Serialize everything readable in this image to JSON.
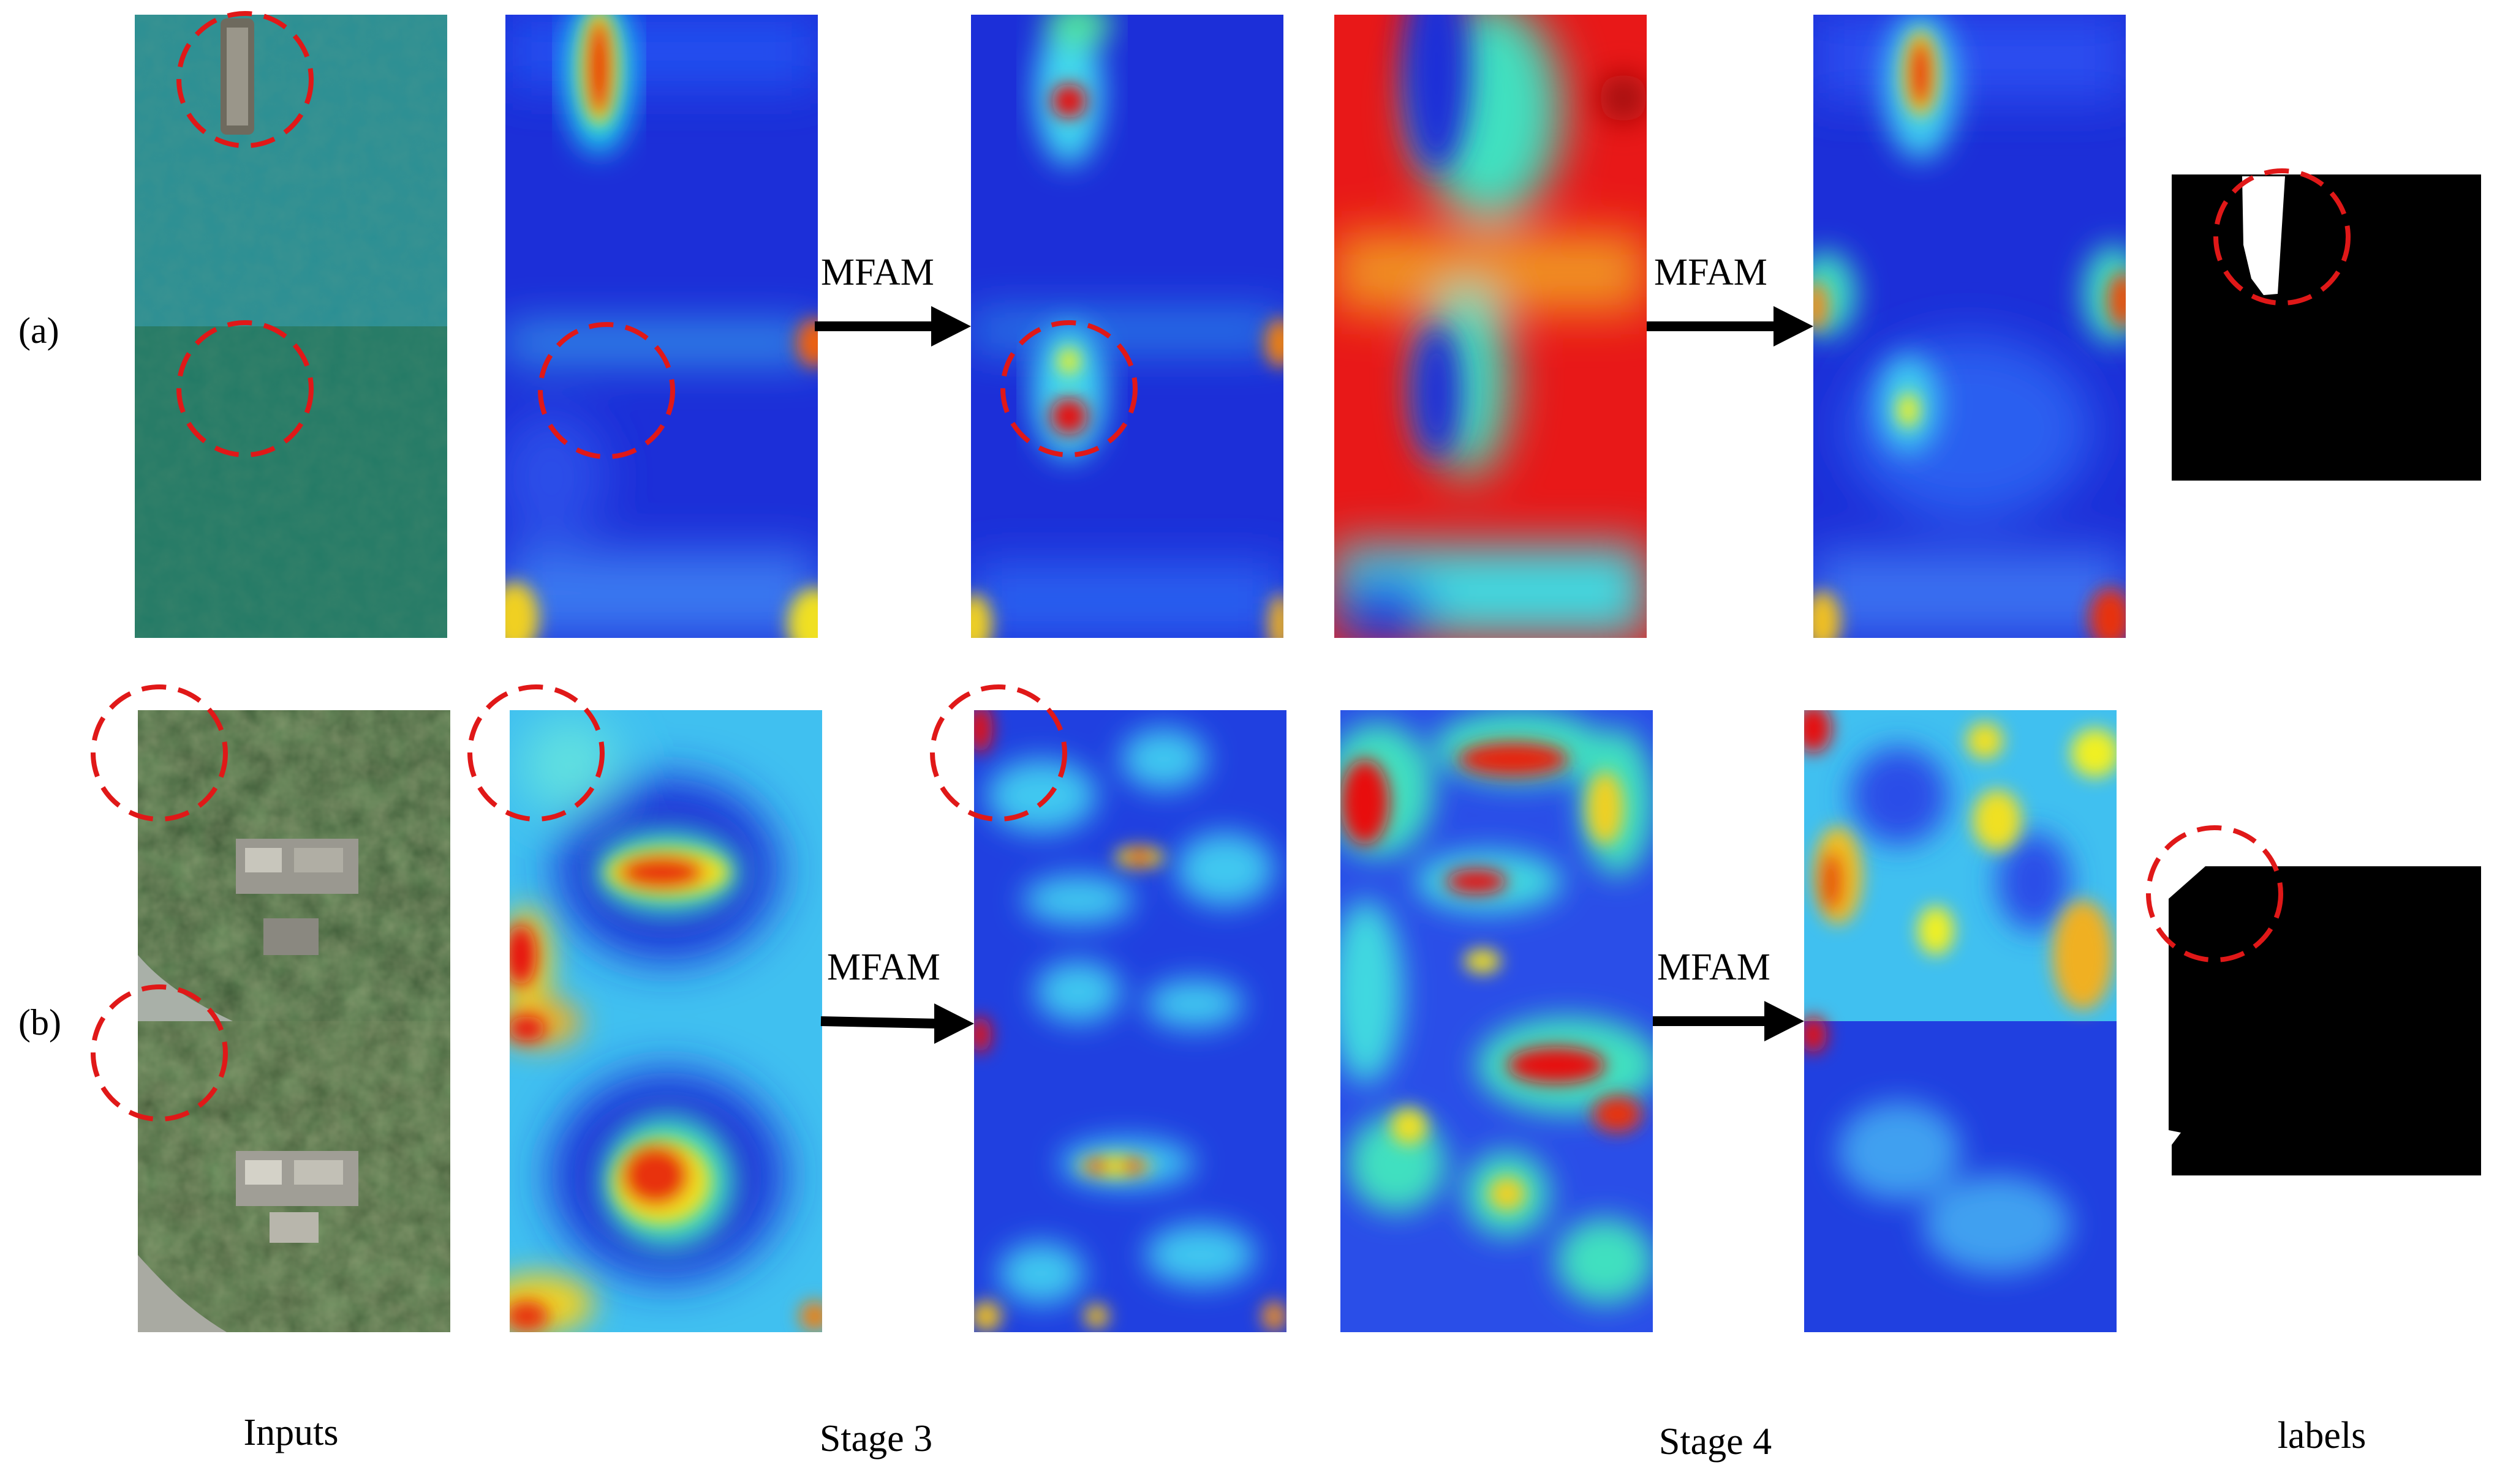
{
  "rows": [
    {
      "label": "(a)",
      "arrows": [
        "MFAM",
        "MFAM"
      ]
    },
    {
      "label": "(b)",
      "arrows": [
        "MFAM",
        "MFAM"
      ]
    }
  ],
  "columns": {
    "inputs": "Inputs",
    "stage3": "Stage 3",
    "stage4": "Stage 4",
    "labels": "labels"
  },
  "colors": {
    "highlight_circle": "#e01818",
    "arrow": "#000000",
    "heat_low": "#1a2fd6",
    "heat_high": "#e81010",
    "label_background": "#000000",
    "label_change": "#ffffff",
    "water_top": "#2a8f94",
    "water_bottom": "#237a66",
    "vegetation": "#3a5a32"
  }
}
